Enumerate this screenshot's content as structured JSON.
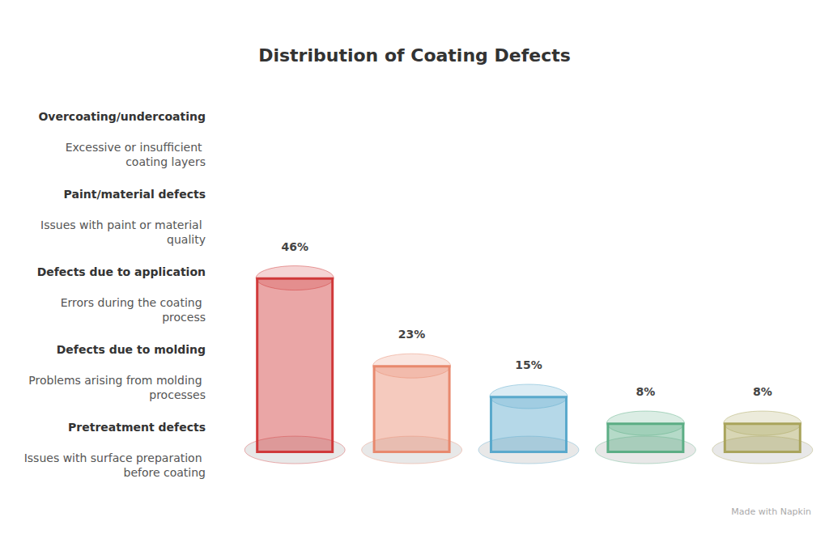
{
  "chart_data": {
    "type": "bar",
    "title": "Distribution of Coating Defects",
    "categories": [
      "Pretreatment defects",
      "Defects due to molding",
      "Defects due to application",
      "Paint/material defects",
      "Overcoating/undercoating"
    ],
    "descriptions": [
      "Issues with surface preparation before coating",
      "Problems arising from molding processes",
      "Errors during the coating process",
      "Issues with paint or material quality",
      "Excessive or insufficient coating layers"
    ],
    "values": [
      46,
      23,
      15,
      8,
      8
    ],
    "value_labels": [
      "46%",
      "23%",
      "15%",
      "8%",
      "8%"
    ],
    "colors": [
      "#d0393a",
      "#e8896e",
      "#5aa9cc",
      "#5cae85",
      "#a9a45c"
    ],
    "data_labels": true,
    "tick_labels": false,
    "credit": "Made with Napkin"
  }
}
